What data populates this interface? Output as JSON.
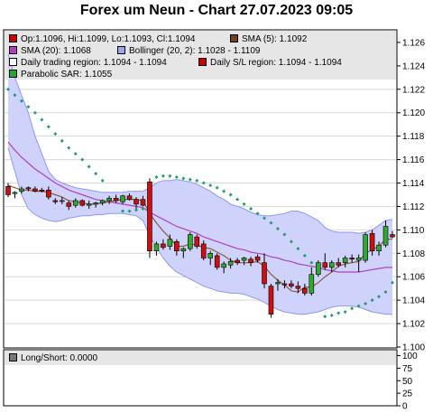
{
  "chart_data": [
    {
      "type": "candlestick",
      "title": "Forex um Neun - Chart 27.07.2023 09:05",
      "legend": {
        "placement": "top",
        "entries": [
          {
            "id": "ohlc",
            "text": "Op:1.1096, Hi:1.1099, Lo:1.1093, Cl:1.1094",
            "color": "#cc0000"
          },
          {
            "id": "sma5",
            "text": "SMA (5): 1.1092",
            "color": "#6b4226"
          },
          {
            "id": "sma20",
            "text": "SMA (20): 1.1068",
            "color": "#b040c0"
          },
          {
            "id": "bollinger",
            "text": "Bollinger (20, 2): 1.1028 - 1.1109",
            "color": "#9aa6ee"
          },
          {
            "id": "daily_trading",
            "text": "Daily trading region: 1.1094 - 1.1094",
            "color": "#ffffff"
          },
          {
            "id": "daily_sl",
            "text": "Daily S/L region: 1.1094 - 1.1094",
            "color": "#cc0000"
          },
          {
            "id": "sar",
            "text": "Parabolic SAR: 1.1055",
            "color": "#1faa2f"
          }
        ]
      },
      "ylim": [
        1.1,
        1.127
      ],
      "yticks": [
        "1.100",
        "1.102",
        "1.104",
        "1.106",
        "1.108",
        "1.110",
        "1.112",
        "1.114",
        "1.116",
        "1.118",
        "1.120",
        "1.122",
        "1.124",
        "1.126"
      ],
      "grid": true,
      "candles": [
        {
          "o": 1.1137,
          "h": 1.114,
          "l": 1.1128,
          "c": 1.113
        },
        {
          "o": 1.1131,
          "h": 1.1133,
          "l": 1.1127,
          "c": 1.1132
        },
        {
          "o": 1.1133,
          "h": 1.1137,
          "l": 1.1131,
          "c": 1.1135
        },
        {
          "o": 1.1136,
          "h": 1.1137,
          "l": 1.1133,
          "c": 1.1135
        },
        {
          "o": 1.1135,
          "h": 1.1137,
          "l": 1.1132,
          "c": 1.1133
        },
        {
          "o": 1.1134,
          "h": 1.1136,
          "l": 1.1132,
          "c": 1.1133
        },
        {
          "o": 1.1134,
          "h": 1.1137,
          "l": 1.1126,
          "c": 1.1128
        },
        {
          "o": 1.1125,
          "h": 1.1127,
          "l": 1.1122,
          "c": 1.1124
        },
        {
          "o": 1.1125,
          "h": 1.1128,
          "l": 1.1122,
          "c": 1.1125
        },
        {
          "o": 1.1123,
          "h": 1.1125,
          "l": 1.1117,
          "c": 1.112
        },
        {
          "o": 1.1121,
          "h": 1.1127,
          "l": 1.1119,
          "c": 1.1125
        },
        {
          "o": 1.1125,
          "h": 1.1126,
          "l": 1.112,
          "c": 1.1121
        },
        {
          "o": 1.1121,
          "h": 1.1125,
          "l": 1.1118,
          "c": 1.1122
        },
        {
          "o": 1.1122,
          "h": 1.1124,
          "l": 1.1119,
          "c": 1.1123
        },
        {
          "o": 1.1123,
          "h": 1.1126,
          "l": 1.1121,
          "c": 1.1125
        },
        {
          "o": 1.1125,
          "h": 1.1129,
          "l": 1.1122,
          "c": 1.1127
        },
        {
          "o": 1.1127,
          "h": 1.113,
          "l": 1.1123,
          "c": 1.1125
        },
        {
          "o": 1.1124,
          "h": 1.113,
          "l": 1.1122,
          "c": 1.1129
        },
        {
          "o": 1.1129,
          "h": 1.1131,
          "l": 1.1125,
          "c": 1.1126
        },
        {
          "o": 1.1126,
          "h": 1.1128,
          "l": 1.1118,
          "c": 1.1122
        },
        {
          "o": 1.1126,
          "h": 1.1129,
          "l": 1.112,
          "c": 1.1121
        },
        {
          "o": 1.1141,
          "h": 1.1144,
          "l": 1.1076,
          "c": 1.1082
        },
        {
          "o": 1.1082,
          "h": 1.109,
          "l": 1.1078,
          "c": 1.1088
        },
        {
          "o": 1.1088,
          "h": 1.1092,
          "l": 1.1083,
          "c": 1.1085
        },
        {
          "o": 1.1086,
          "h": 1.1096,
          "l": 1.1083,
          "c": 1.1092
        },
        {
          "o": 1.109,
          "h": 1.1092,
          "l": 1.1078,
          "c": 1.1082
        },
        {
          "o": 1.1082,
          "h": 1.1085,
          "l": 1.1076,
          "c": 1.1084
        },
        {
          "o": 1.1084,
          "h": 1.1098,
          "l": 1.1082,
          "c": 1.1096
        },
        {
          "o": 1.1094,
          "h": 1.1096,
          "l": 1.1084,
          "c": 1.1086
        },
        {
          "o": 1.1088,
          "h": 1.1091,
          "l": 1.1074,
          "c": 1.1076
        },
        {
          "o": 1.1076,
          "h": 1.1082,
          "l": 1.107,
          "c": 1.108
        },
        {
          "o": 1.1078,
          "h": 1.108,
          "l": 1.1066,
          "c": 1.1068
        },
        {
          "o": 1.1068,
          "h": 1.1073,
          "l": 1.1063,
          "c": 1.1071
        },
        {
          "o": 1.107,
          "h": 1.1076,
          "l": 1.1067,
          "c": 1.1073
        },
        {
          "o": 1.1074,
          "h": 1.1076,
          "l": 1.107,
          "c": 1.1072
        },
        {
          "o": 1.1074,
          "h": 1.1077,
          "l": 1.107,
          "c": 1.1076
        },
        {
          "o": 1.1075,
          "h": 1.1077,
          "l": 1.1069,
          "c": 1.1072
        },
        {
          "o": 1.1077,
          "h": 1.1079,
          "l": 1.1072,
          "c": 1.1074
        },
        {
          "o": 1.1072,
          "h": 1.108,
          "l": 1.105,
          "c": 1.1054
        },
        {
          "o": 1.1052,
          "h": 1.1054,
          "l": 1.1025,
          "c": 1.1028
        },
        {
          "o": 1.1054,
          "h": 1.1058,
          "l": 1.1048,
          "c": 1.1055
        },
        {
          "o": 1.1054,
          "h": 1.1057,
          "l": 1.105,
          "c": 1.1053
        },
        {
          "o": 1.1054,
          "h": 1.1057,
          "l": 1.105,
          "c": 1.1052
        },
        {
          "o": 1.1052,
          "h": 1.1056,
          "l": 1.1046,
          "c": 1.105
        },
        {
          "o": 1.105,
          "h": 1.1054,
          "l": 1.1044,
          "c": 1.1046
        },
        {
          "o": 1.1046,
          "h": 1.1068,
          "l": 1.1044,
          "c": 1.1062
        },
        {
          "o": 1.1062,
          "h": 1.1074,
          "l": 1.106,
          "c": 1.1072
        },
        {
          "o": 1.1072,
          "h": 1.108,
          "l": 1.1066,
          "c": 1.1068
        },
        {
          "o": 1.1068,
          "h": 1.1074,
          "l": 1.1064,
          "c": 1.1072
        },
        {
          "o": 1.1072,
          "h": 1.1076,
          "l": 1.1068,
          "c": 1.107
        },
        {
          "o": 1.1072,
          "h": 1.1078,
          "l": 1.1068,
          "c": 1.1076
        },
        {
          "o": 1.1076,
          "h": 1.1079,
          "l": 1.1072,
          "c": 1.1075
        },
        {
          "o": 1.1074,
          "h": 1.1079,
          "l": 1.1064,
          "c": 1.1076
        },
        {
          "o": 1.1074,
          "h": 1.1098,
          "l": 1.1072,
          "c": 1.1096
        },
        {
          "o": 1.1097,
          "h": 1.11,
          "l": 1.1078,
          "c": 1.1082
        },
        {
          "o": 1.1082,
          "h": 1.109,
          "l": 1.1078,
          "c": 1.1087
        },
        {
          "o": 1.1087,
          "h": 1.1108,
          "l": 1.1085,
          "c": 1.1103
        },
        {
          "o": 1.1096,
          "h": 1.1099,
          "l": 1.1093,
          "c": 1.1094
        }
      ],
      "sma5": [
        1.1138,
        1.1136,
        1.1134,
        1.1134,
        1.1133,
        1.1133,
        1.1132,
        1.113,
        1.1128,
        1.1125,
        1.1124,
        1.1123,
        1.1122,
        1.1122,
        1.1123,
        1.1124,
        1.1125,
        1.1126,
        1.1126,
        1.1126,
        1.1125,
        1.1114,
        1.1106,
        1.1099,
        1.1093,
        1.1086,
        1.1086,
        1.1088,
        1.1087,
        1.1085,
        1.1084,
        1.1081,
        1.1078,
        1.1074,
        1.1072,
        1.1072,
        1.1072,
        1.1073,
        1.1069,
        1.1062,
        1.1057,
        1.1053,
        1.1048,
        1.1047,
        1.1051,
        1.1051,
        1.1055,
        1.106,
        1.1064,
        1.1069,
        1.1071,
        1.1072,
        1.1073,
        1.108,
        1.1083,
        1.1086,
        1.1092,
        1.1092
      ],
      "sma20": [
        1.1175,
        1.1168,
        1.1162,
        1.1157,
        1.1152,
        1.1148,
        1.1144,
        1.114,
        1.1137,
        1.1134,
        1.1132,
        1.113,
        1.1128,
        1.1126,
        1.1125,
        1.1124,
        1.1123,
        1.1122,
        1.1121,
        1.112,
        1.1119,
        1.1115,
        1.1112,
        1.1109,
        1.1106,
        1.1103,
        1.1101,
        1.1099,
        1.1097,
        1.1094,
        1.1092,
        1.109,
        1.1088,
        1.1086,
        1.1084,
        1.1083,
        1.1081,
        1.108,
        1.1079,
        1.1077,
        1.1076,
        1.1074,
        1.1073,
        1.1071,
        1.107,
        1.1069,
        1.1068,
        1.1066,
        1.1065,
        1.1064,
        1.1064,
        1.1064,
        1.1064,
        1.1065,
        1.1066,
        1.1067,
        1.1068,
        1.1068
      ],
      "boll_upper": [
        1.125,
        1.123,
        1.1215,
        1.12,
        1.118,
        1.1165,
        1.115,
        1.1143,
        1.114,
        1.1138,
        1.1136,
        1.1135,
        1.1134,
        1.1133,
        1.1132,
        1.1132,
        1.1132,
        1.1132,
        1.1133,
        1.1133,
        1.1133,
        1.1136,
        1.114,
        1.1142,
        1.1142,
        1.1143,
        1.1142,
        1.1141,
        1.1139,
        1.1136,
        1.1133,
        1.1129,
        1.1126,
        1.1122,
        1.112,
        1.1118,
        1.1115,
        1.1113,
        1.1112,
        1.1112,
        1.1113,
        1.1114,
        1.1116,
        1.1116,
        1.1114,
        1.1111,
        1.1108,
        1.1102,
        1.1099,
        1.1098,
        1.1098,
        1.1098,
        1.1097,
        1.1098,
        1.11,
        1.1104,
        1.1108,
        1.1109
      ],
      "boll_lower": [
        1.117,
        1.115,
        1.113,
        1.1118,
        1.1113,
        1.111,
        1.1108,
        1.1107,
        1.1108,
        1.111,
        1.1111,
        1.1112,
        1.1112,
        1.1113,
        1.1113,
        1.1114,
        1.1114,
        1.1114,
        1.1113,
        1.1112,
        1.1108,
        1.1095,
        1.1085,
        1.1076,
        1.1069,
        1.1064,
        1.1061,
        1.1058,
        1.1055,
        1.1052,
        1.105,
        1.1048,
        1.1047,
        1.1046,
        1.1046,
        1.1045,
        1.1043,
        1.1041,
        1.1038,
        1.1035,
        1.1032,
        1.103,
        1.1029,
        1.1028,
        1.1028,
        1.1029,
        1.103,
        1.1032,
        1.1034,
        1.1035,
        1.1035,
        1.1035,
        1.1034,
        1.1032,
        1.103,
        1.1029,
        1.1028,
        1.1028
      ],
      "sar": [
        1.122,
        1.1215,
        1.121,
        1.1205,
        1.12,
        1.1194,
        1.1188,
        1.1182,
        1.1176,
        1.117,
        1.1165,
        1.116,
        1.1154,
        1.1148,
        1.1142,
        null,
        null,
        1.1116,
        1.1116,
        1.1117,
        1.1118,
        1.112,
        1.1145,
        1.1146,
        1.1146,
        1.1145,
        1.1144,
        1.1143,
        1.1142,
        1.114,
        1.1138,
        1.1136,
        1.1133,
        1.113,
        1.1126,
        1.1122,
        1.1118,
        1.1114,
        1.111,
        1.1106,
        1.1101,
        1.1096,
        1.109,
        1.1084,
        1.1078,
        1.1072,
        1.1066,
        1.1026,
        1.1027,
        1.1029,
        1.103,
        1.1033,
        1.1035,
        1.1037,
        1.104,
        1.1043,
        1.1047,
        1.1055
      ]
    },
    {
      "type": "line",
      "legend": {
        "entries": [
          {
            "text": "Long/Short: 0.0000",
            "color": "#777777"
          }
        ]
      },
      "ylim": [
        0,
        110
      ],
      "yticks": [
        "0",
        "25",
        "50",
        "75",
        "100"
      ],
      "values": []
    }
  ]
}
